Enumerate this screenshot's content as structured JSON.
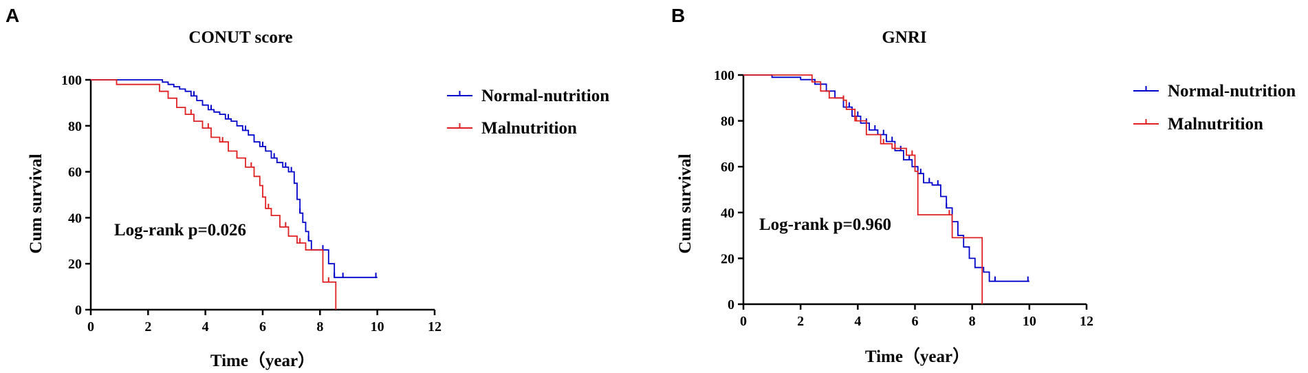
{
  "chart_data": [
    {
      "panel": "A",
      "type": "line",
      "title": "CONUT score",
      "xlabel": "Time（year）",
      "ylabel": "Cum survival",
      "xlim": [
        0,
        12
      ],
      "ylim": [
        0,
        100
      ],
      "xticks": [
        "0",
        "2",
        "4",
        "6",
        "8",
        "10",
        "12"
      ],
      "yticks": [
        "0",
        "20",
        "40",
        "60",
        "80",
        "100"
      ],
      "annotation": "Log-rank p=0.026",
      "legend_position": "top-right outside",
      "series": [
        {
          "name": "Normal-nutrition",
          "color": "#0000cc",
          "points": [
            [
              0,
              100
            ],
            [
              2.3,
              100
            ],
            [
              2.5,
              99
            ],
            [
              2.7,
              98
            ],
            [
              2.9,
              97
            ],
            [
              3.1,
              96
            ],
            [
              3.3,
              95
            ],
            [
              3.5,
              93
            ],
            [
              3.7,
              91
            ],
            [
              3.9,
              89
            ],
            [
              4.1,
              87
            ],
            [
              4.3,
              86
            ],
            [
              4.5,
              85
            ],
            [
              4.7,
              83
            ],
            [
              4.9,
              82
            ],
            [
              5.1,
              80
            ],
            [
              5.3,
              78
            ],
            [
              5.5,
              76
            ],
            [
              5.7,
              73
            ],
            [
              5.9,
              71
            ],
            [
              6.1,
              69
            ],
            [
              6.3,
              66
            ],
            [
              6.5,
              64
            ],
            [
              6.7,
              62
            ],
            [
              6.9,
              60
            ],
            [
              7.1,
              55
            ],
            [
              7.2,
              48
            ],
            [
              7.3,
              42
            ],
            [
              7.4,
              38
            ],
            [
              7.5,
              34
            ],
            [
              7.6,
              30
            ],
            [
              7.7,
              26
            ],
            [
              8.2,
              26
            ],
            [
              8.3,
              20
            ],
            [
              8.5,
              14
            ],
            [
              10.0,
              14
            ]
          ],
          "censor_x": [
            3.6,
            4.2,
            4.8,
            5.4,
            6.0,
            6.4,
            6.8,
            7.0,
            7.3,
            7.6,
            8.1,
            8.5,
            8.8,
            9.95
          ]
        },
        {
          "name": "Malnutrition",
          "color": "#e02020",
          "points": [
            [
              0,
              100
            ],
            [
              0.9,
              98
            ],
            [
              2.0,
              98
            ],
            [
              2.4,
              95
            ],
            [
              2.7,
              92
            ],
            [
              3.0,
              88
            ],
            [
              3.3,
              85
            ],
            [
              3.6,
              82
            ],
            [
              3.9,
              79
            ],
            [
              4.2,
              75
            ],
            [
              4.5,
              73
            ],
            [
              4.8,
              69
            ],
            [
              5.1,
              66
            ],
            [
              5.4,
              62
            ],
            [
              5.7,
              58
            ],
            [
              5.9,
              54
            ],
            [
              6.0,
              49
            ],
            [
              6.1,
              44
            ],
            [
              6.3,
              41
            ],
            [
              6.6,
              36
            ],
            [
              6.9,
              32
            ],
            [
              7.2,
              29
            ],
            [
              7.5,
              26
            ],
            [
              8.0,
              26
            ],
            [
              8.1,
              12
            ],
            [
              8.55,
              12
            ],
            [
              8.55,
              0
            ]
          ],
          "censor_x": [
            3.5,
            4.1,
            4.6,
            5.1,
            5.6,
            6.2,
            6.8,
            7.3,
            8.3
          ]
        }
      ]
    },
    {
      "panel": "B",
      "type": "line",
      "title": "GNRI",
      "xlabel": "Time（year）",
      "ylabel": "Cum survival",
      "xlim": [
        0,
        12
      ],
      "ylim": [
        0,
        100
      ],
      "xticks": [
        "0",
        "2",
        "4",
        "6",
        "8",
        "10",
        "12"
      ],
      "yticks": [
        "0",
        "20",
        "40",
        "60",
        "80",
        "100"
      ],
      "annotation": "Log-rank p=0.960",
      "legend_position": "top-right outside",
      "series": [
        {
          "name": "Normal-nutrition",
          "color": "#0000cc",
          "points": [
            [
              0,
              100
            ],
            [
              1.0,
              99
            ],
            [
              2.0,
              98
            ],
            [
              2.5,
              96
            ],
            [
              2.9,
              93
            ],
            [
              3.2,
              90
            ],
            [
              3.5,
              86
            ],
            [
              3.8,
              82
            ],
            [
              4.1,
              79
            ],
            [
              4.4,
              76
            ],
            [
              4.7,
              74
            ],
            [
              5.0,
              71
            ],
            [
              5.3,
              67
            ],
            [
              5.6,
              63
            ],
            [
              5.9,
              60
            ],
            [
              6.1,
              57
            ],
            [
              6.3,
              53
            ],
            [
              6.6,
              52
            ],
            [
              6.9,
              47
            ],
            [
              7.1,
              42
            ],
            [
              7.3,
              36
            ],
            [
              7.5,
              30
            ],
            [
              7.7,
              25
            ],
            [
              7.9,
              20
            ],
            [
              8.1,
              16
            ],
            [
              8.4,
              14
            ],
            [
              8.6,
              10
            ],
            [
              10.0,
              10
            ]
          ],
          "censor_x": [
            3.7,
            4.0,
            4.3,
            4.6,
            4.9,
            5.2,
            5.5,
            5.8,
            6.2,
            6.5,
            6.8,
            7.1,
            8.8,
            9.95
          ]
        },
        {
          "name": "Malnutrition",
          "color": "#e02020",
          "points": [
            [
              0,
              100
            ],
            [
              2.2,
              100
            ],
            [
              2.4,
              97
            ],
            [
              2.7,
              93
            ],
            [
              3.0,
              90
            ],
            [
              3.5,
              89
            ],
            [
              3.6,
              85
            ],
            [
              3.9,
              80
            ],
            [
              4.3,
              74
            ],
            [
              4.8,
              70
            ],
            [
              5.2,
              68
            ],
            [
              5.7,
              65
            ],
            [
              6.0,
              58
            ],
            [
              6.1,
              39
            ],
            [
              7.2,
              39
            ],
            [
              7.3,
              29
            ],
            [
              8.35,
              29
            ],
            [
              8.35,
              0
            ]
          ],
          "censor_x": [
            3.5,
            3.95,
            4.9,
            5.3,
            5.9,
            7.2
          ]
        }
      ]
    }
  ]
}
